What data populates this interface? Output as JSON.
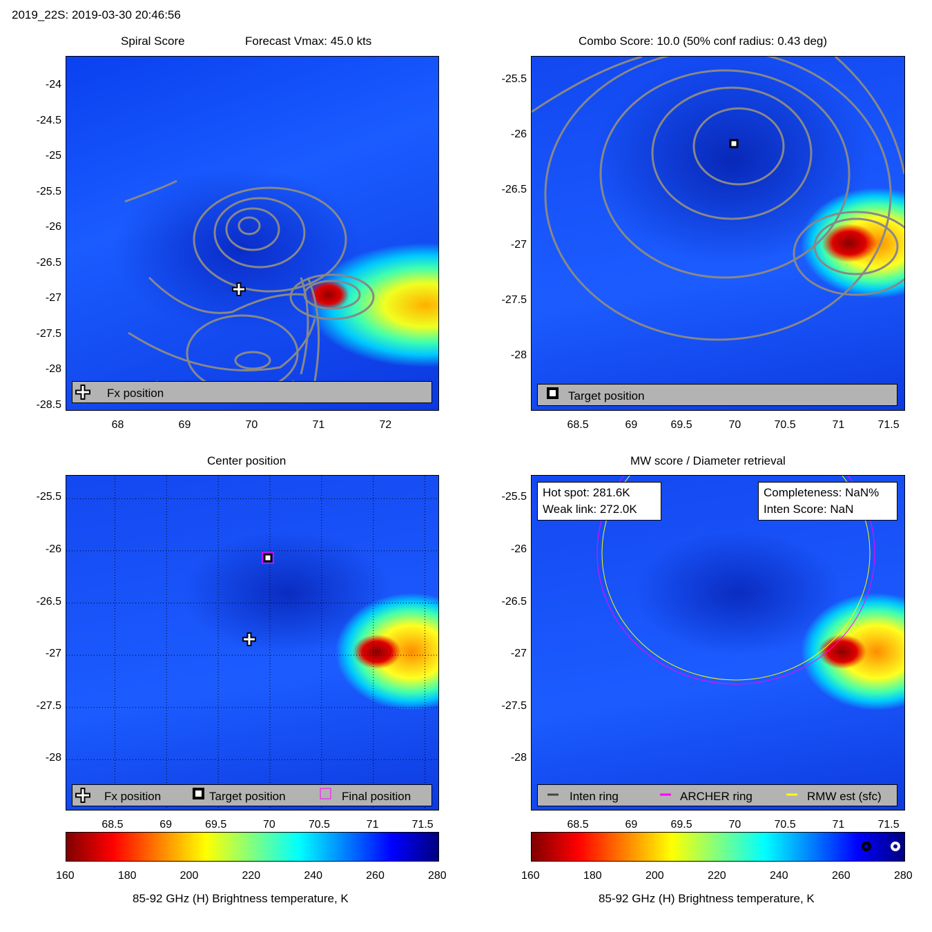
{
  "figure_title": "2019_22S: 2019-03-30 20:46:56",
  "chart_data": {
    "type": "heatmap",
    "colormap": "jet",
    "clim": [
      160,
      280
    ],
    "panels": [
      {
        "title": "Spiral Score",
        "title_right": "Forecast Vmax: 45.0 kts",
        "xlim": [
          67.22,
          72.78
        ],
        "ylim": [
          -28.55,
          -23.58
        ],
        "xticks": [
          "68",
          "69",
          "70",
          "71",
          "72"
        ],
        "yticks": [
          "-24",
          "-24.5",
          "-25",
          "-25.5",
          "-26",
          "-26.5",
          "-27",
          "-27.5",
          "-28",
          "-28.5"
        ],
        "legend": [
          {
            "label": "Fx position",
            "icon": "plus-icon"
          }
        ],
        "markers": [
          {
            "type": "fx",
            "lon": 69.8,
            "lat": -26.85
          }
        ]
      },
      {
        "title": "Combo Score: 10.0  (50% conf radius: 0.43 deg)",
        "xlim": [
          68.03,
          71.63
        ],
        "ylim": [
          -28.48,
          -25.28
        ],
        "xticks": [
          "68.5",
          "69",
          "69.5",
          "70",
          "70.5",
          "71",
          "71.5"
        ],
        "yticks": [
          "-25.5",
          "-26",
          "-26.5",
          "-27",
          "-27.5",
          "-28"
        ],
        "legend": [
          {
            "label": "Target position",
            "icon": "square-icon"
          }
        ],
        "markers": [
          {
            "type": "target",
            "lon": 69.98,
            "lat": -26.07
          }
        ]
      },
      {
        "title": "Center position",
        "xlim": [
          68.03,
          71.63
        ],
        "ylim": [
          -28.48,
          -25.28
        ],
        "xticks": [
          "68.5",
          "69",
          "69.5",
          "70",
          "70.5",
          "71",
          "71.5"
        ],
        "yticks": [
          "-25.5",
          "-26",
          "-26.5",
          "-27",
          "-27.5",
          "-28"
        ],
        "legend": [
          {
            "label": "Fx position",
            "icon": "plus-icon"
          },
          {
            "label": "Target position",
            "icon": "square-icon"
          },
          {
            "label": "Final position",
            "icon": "magenta-square-icon"
          }
        ],
        "markers": [
          {
            "type": "fx",
            "lon": 69.8,
            "lat": -26.85
          },
          {
            "type": "target",
            "lon": 69.98,
            "lat": -26.07
          }
        ]
      },
      {
        "title": "MW score / Diameter retrieval",
        "xlim": [
          68.03,
          71.63
        ],
        "ylim": [
          -28.48,
          -25.28
        ],
        "xticks": [
          "68.5",
          "69",
          "69.5",
          "70",
          "70.5",
          "71",
          "71.5"
        ],
        "yticks": [
          "-25.5",
          "-26",
          "-26.5",
          "-27",
          "-27.5",
          "-28"
        ],
        "legend": [
          {
            "label": "Inten ring",
            "icon": "gray-line-icon"
          },
          {
            "label": "ARCHER ring",
            "icon": "magenta-line-icon"
          },
          {
            "label": "RMW est (sfc)",
            "icon": "yellow-line-icon"
          }
        ],
        "annotations": {
          "hot_spot": "Hot spot: 281.6K",
          "weak_link": "Weak link: 272.0K",
          "completeness": "Completeness: NaN%",
          "inten_score": "Inten Score: NaN"
        }
      }
    ],
    "colorbars": [
      {
        "ticks": [
          "160",
          "180",
          "200",
          "220",
          "240",
          "260",
          "280"
        ],
        "label": "85-92 GHz (H) Brightness temperature, K"
      },
      {
        "ticks": [
          "160",
          "180",
          "200",
          "220",
          "240",
          "260",
          "280"
        ],
        "label": "85-92 GHz (H) Brightness temperature, K"
      }
    ]
  }
}
